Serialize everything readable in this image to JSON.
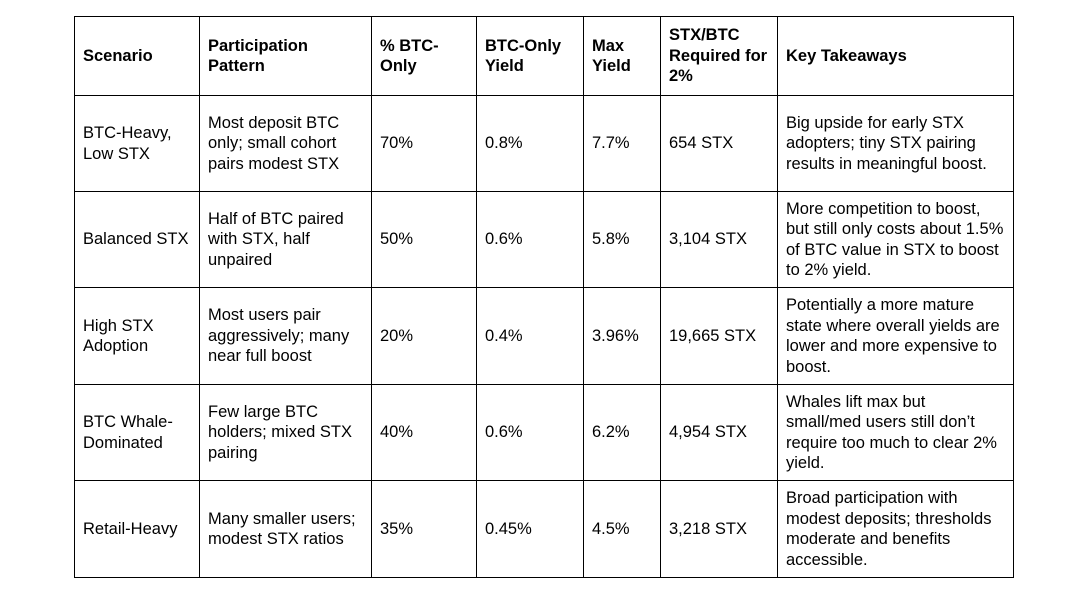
{
  "table": {
    "headers": [
      "Scenario",
      "Participation Pattern",
      "% BTC-Only",
      "BTC-Only Yield",
      "Max Yield",
      "STX/BTC Required for 2%",
      "Key Takeaways"
    ],
    "rows": [
      {
        "scenario": "BTC-Heavy, Low STX",
        "pattern": "Most deposit BTC only; small cohort pairs modest STX",
        "btc_only_pct": "70%",
        "btc_only_yield": "0.8%",
        "max_yield": "7.7%",
        "stx_required": "654 STX",
        "takeaway": "Big upside for early STX adopters; tiny STX pairing results in meaningful boost."
      },
      {
        "scenario": "Balanced STX",
        "pattern": "Half of BTC paired with STX, half unpaired",
        "btc_only_pct": "50%",
        "btc_only_yield": "0.6%",
        "max_yield": "5.8%",
        "stx_required": "3,104 STX",
        "takeaway": "More competition to boost, but still only costs about 1.5% of BTC value in STX to boost to 2% yield."
      },
      {
        "scenario": "High STX Adoption",
        "pattern": "Most users pair aggressively; many near full boost",
        "btc_only_pct": "20%",
        "btc_only_yield": "0.4%",
        "max_yield": "3.96%",
        "stx_required": "19,665 STX",
        "takeaway": "Potentially a more mature state where overall yields are lower and more expensive to boost."
      },
      {
        "scenario": "BTC Whale-Dominated",
        "pattern": "Few large BTC holders; mixed STX pairing",
        "btc_only_pct": "40%",
        "btc_only_yield": "0.6%",
        "max_yield": "6.2%",
        "stx_required": "4,954 STX",
        "takeaway": "Whales lift max but small/med users still don’t require too much to clear 2% yield."
      },
      {
        "scenario": "Retail-Heavy",
        "pattern": "Many smaller users; modest STX ratios",
        "btc_only_pct": "35%",
        "btc_only_yield": "0.45%",
        "max_yield": "4.5%",
        "stx_required": "3,218 STX",
        "takeaway": "Broad participation with modest deposits; thresholds moderate and benefits accessible."
      }
    ]
  }
}
